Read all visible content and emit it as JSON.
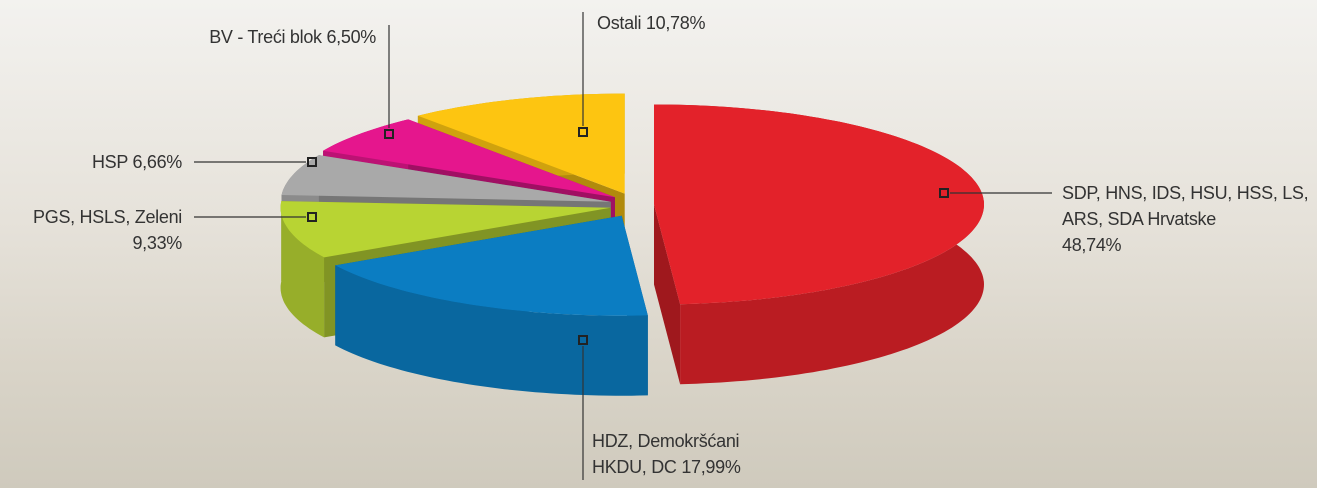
{
  "chart_data": {
    "type": "pie",
    "categories": [
      "SDP, HNS, IDS, HSU, HSS, LS, ARS, SDA Hrvatske",
      "HDZ, Demokršćani HKDU, DC",
      "PGS, HSLS, Zeleni",
      "HSP",
      "BV - Treći blok",
      "Ostali"
    ],
    "values": [
      48.74,
      17.99,
      9.33,
      6.66,
      6.5,
      10.78
    ],
    "value_labels": [
      "48,74%",
      "17,99%",
      "9,33%",
      "6,66%",
      "6,50%",
      "10,78%"
    ],
    "colors": [
      "#e3222a",
      "#0b7dc2",
      "#b8d433",
      "#a9a9a9",
      "#e5168d",
      "#fdc511"
    ]
  }
}
